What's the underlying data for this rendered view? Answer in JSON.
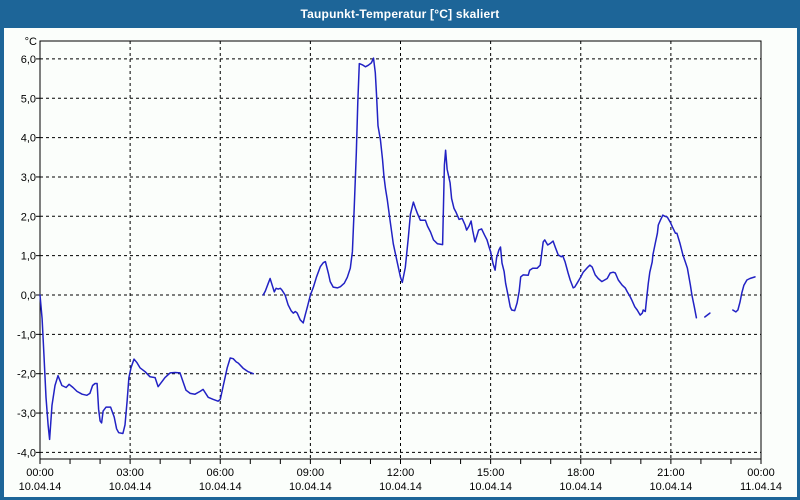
{
  "window": {
    "title": "Taupunkt-Temperatur [°C] skaliert"
  },
  "colors": {
    "titlebar": "#1d6598",
    "window_border": "#1d6598",
    "plot_background": "#fbfefb",
    "grid": "#000000",
    "axis": "#000000",
    "line": "#2222c4",
    "title_text": "#ffffff",
    "label_text": "#000000"
  },
  "chart_data": {
    "type": "line",
    "title": "Taupunkt-Temperatur [°C] skaliert",
    "xlabel": "",
    "ylabel": "°C",
    "y_unit_label": "°C",
    "ylim": [
      -4.17,
      6.45
    ],
    "xlim_hours": [
      0,
      24
    ],
    "grid": "dashed, horizontal every 1.0 °C and vertical every 3 h",
    "legend": "none",
    "y_ticks": [
      {
        "value": 6,
        "label": "6,0"
      },
      {
        "value": 5,
        "label": "5,0"
      },
      {
        "value": 4,
        "label": "4,0"
      },
      {
        "value": 3,
        "label": "3,0"
      },
      {
        "value": 2,
        "label": "2,0"
      },
      {
        "value": 1,
        "label": "1,0"
      },
      {
        "value": 0,
        "label": "0,0"
      },
      {
        "value": -1,
        "label": "-1,0"
      },
      {
        "value": -2,
        "label": "-2,0"
      },
      {
        "value": -3,
        "label": "-3,0"
      },
      {
        "value": -4,
        "label": "-4,0"
      }
    ],
    "x_ticks": [
      {
        "hour": 0,
        "time": "00:00",
        "date": "10.04.14"
      },
      {
        "hour": 3,
        "time": "03:00",
        "date": "10.04.14"
      },
      {
        "hour": 6,
        "time": "06:00",
        "date": "10.04.14"
      },
      {
        "hour": 9,
        "time": "09:00",
        "date": "10.04.14"
      },
      {
        "hour": 12,
        "time": "12:00",
        "date": "10.04.14"
      },
      {
        "hour": 15,
        "time": "15:00",
        "date": "10.04.14"
      },
      {
        "hour": 18,
        "time": "18:00",
        "date": "10.04.14"
      },
      {
        "hour": 21,
        "time": "21:00",
        "date": "10.04.14"
      },
      {
        "hour": 24,
        "time": "00:00",
        "date": "11.04.14"
      }
    ],
    "minor_x_tick_every_hours": 1,
    "series": [
      {
        "name": "Taupunkt-Temperatur",
        "color": "#2222c4",
        "segments": [
          [
            [
              0.0,
              0.0
            ],
            [
              0.07,
              -0.6
            ],
            [
              0.13,
              -1.5
            ],
            [
              0.2,
              -2.6
            ],
            [
              0.27,
              -3.3
            ],
            [
              0.32,
              -3.67
            ],
            [
              0.4,
              -2.8
            ],
            [
              0.5,
              -2.3
            ],
            [
              0.6,
              -2.05
            ],
            [
              0.73,
              -2.3
            ],
            [
              0.87,
              -2.35
            ],
            [
              0.97,
              -2.27
            ],
            [
              1.1,
              -2.35
            ],
            [
              1.23,
              -2.45
            ],
            [
              1.4,
              -2.52
            ],
            [
              1.56,
              -2.55
            ],
            [
              1.66,
              -2.5
            ],
            [
              1.75,
              -2.3
            ],
            [
              1.83,
              -2.25
            ],
            [
              1.9,
              -2.25
            ],
            [
              1.95,
              -2.9
            ],
            [
              2.0,
              -3.2
            ],
            [
              2.05,
              -3.25
            ],
            [
              2.1,
              -2.95
            ],
            [
              2.2,
              -2.85
            ],
            [
              2.35,
              -2.85
            ],
            [
              2.47,
              -3.1
            ],
            [
              2.55,
              -3.4
            ],
            [
              2.62,
              -3.5
            ],
            [
              2.76,
              -3.52
            ],
            [
              2.83,
              -3.3
            ],
            [
              2.9,
              -2.7
            ],
            [
              2.96,
              -2.1
            ],
            [
              3.03,
              -1.85
            ],
            [
              3.13,
              -1.63
            ],
            [
              3.23,
              -1.72
            ],
            [
              3.33,
              -1.85
            ],
            [
              3.5,
              -1.95
            ],
            [
              3.66,
              -2.08
            ],
            [
              3.83,
              -2.1
            ],
            [
              3.93,
              -2.33
            ],
            [
              4.06,
              -2.2
            ],
            [
              4.16,
              -2.1
            ],
            [
              4.33,
              -1.98
            ],
            [
              4.5,
              -1.97
            ],
            [
              4.66,
              -1.98
            ],
            [
              4.76,
              -2.2
            ],
            [
              4.86,
              -2.42
            ],
            [
              5.0,
              -2.5
            ],
            [
              5.16,
              -2.52
            ],
            [
              5.33,
              -2.45
            ],
            [
              5.43,
              -2.4
            ],
            [
              5.6,
              -2.6
            ],
            [
              5.76,
              -2.65
            ],
            [
              5.93,
              -2.7
            ],
            [
              6.0,
              -2.65
            ],
            [
              6.1,
              -2.3
            ],
            [
              6.23,
              -1.85
            ],
            [
              6.33,
              -1.6
            ],
            [
              6.43,
              -1.62
            ],
            [
              6.53,
              -1.7
            ],
            [
              6.6,
              -1.73
            ],
            [
              6.76,
              -1.86
            ],
            [
              6.93,
              -1.95
            ],
            [
              7.1,
              -2.0
            ]
          ],
          [
            [
              7.43,
              0.0
            ],
            [
              7.5,
              0.1
            ],
            [
              7.6,
              0.3
            ],
            [
              7.66,
              0.42
            ],
            [
              7.73,
              0.25
            ],
            [
              7.8,
              0.08
            ],
            [
              7.86,
              0.17
            ],
            [
              7.93,
              0.15
            ],
            [
              8.0,
              0.17
            ],
            [
              8.06,
              0.12
            ],
            [
              8.16,
              0.0
            ],
            [
              8.26,
              -0.25
            ],
            [
              8.36,
              -0.4
            ],
            [
              8.43,
              -0.46
            ],
            [
              8.5,
              -0.42
            ],
            [
              8.56,
              -0.46
            ],
            [
              8.66,
              -0.63
            ],
            [
              8.76,
              -0.71
            ],
            [
              8.83,
              -0.5
            ],
            [
              8.9,
              -0.3
            ],
            [
              9.0,
              0.0
            ],
            [
              9.1,
              0.2
            ],
            [
              9.2,
              0.45
            ],
            [
              9.33,
              0.72
            ],
            [
              9.43,
              0.82
            ],
            [
              9.5,
              0.85
            ],
            [
              9.6,
              0.55
            ],
            [
              9.66,
              0.34
            ],
            [
              9.76,
              0.2
            ],
            [
              9.9,
              0.18
            ],
            [
              10.0,
              0.21
            ],
            [
              10.13,
              0.3
            ],
            [
              10.23,
              0.45
            ],
            [
              10.33,
              0.68
            ],
            [
              10.4,
              1.1
            ],
            [
              10.46,
              2.2
            ],
            [
              10.53,
              3.6
            ],
            [
              10.58,
              4.9
            ],
            [
              10.63,
              5.88
            ],
            [
              10.73,
              5.85
            ],
            [
              10.83,
              5.8
            ],
            [
              10.93,
              5.84
            ],
            [
              11.03,
              5.9
            ],
            [
              11.1,
              6.02
            ],
            [
              11.16,
              5.65
            ],
            [
              11.2,
              5.1
            ],
            [
              11.25,
              4.3
            ],
            [
              11.33,
              3.95
            ],
            [
              11.4,
              3.45
            ],
            [
              11.45,
              3.0
            ],
            [
              11.5,
              2.7
            ],
            [
              11.56,
              2.42
            ],
            [
              11.66,
              1.85
            ],
            [
              11.76,
              1.3
            ],
            [
              11.9,
              0.8
            ],
            [
              12.0,
              0.45
            ],
            [
              12.06,
              0.32
            ],
            [
              12.16,
              0.7
            ],
            [
              12.26,
              1.45
            ],
            [
              12.33,
              2.05
            ],
            [
              12.43,
              2.36
            ],
            [
              12.5,
              2.2
            ],
            [
              12.56,
              2.08
            ],
            [
              12.66,
              1.9
            ],
            [
              12.83,
              1.9
            ],
            [
              12.9,
              1.75
            ],
            [
              13.0,
              1.6
            ],
            [
              13.1,
              1.4
            ],
            [
              13.23,
              1.3
            ],
            [
              13.4,
              1.28
            ],
            [
              13.46,
              3.3
            ],
            [
              13.5,
              3.68
            ],
            [
              13.55,
              3.2
            ],
            [
              13.65,
              2.85
            ],
            [
              13.7,
              2.45
            ],
            [
              13.78,
              2.2
            ],
            [
              13.85,
              2.1
            ],
            [
              13.95,
              1.92
            ],
            [
              14.05,
              1.95
            ],
            [
              14.15,
              1.78
            ],
            [
              14.2,
              1.65
            ],
            [
              14.28,
              1.75
            ],
            [
              14.35,
              1.88
            ],
            [
              14.4,
              1.65
            ],
            [
              14.48,
              1.35
            ],
            [
              14.55,
              1.52
            ],
            [
              14.6,
              1.65
            ],
            [
              14.7,
              1.68
            ],
            [
              14.8,
              1.52
            ],
            [
              14.88,
              1.4
            ],
            [
              14.95,
              1.22
            ],
            [
              15.0,
              1.1
            ],
            [
              15.08,
              0.8
            ],
            [
              15.15,
              0.63
            ],
            [
              15.2,
              0.95
            ],
            [
              15.28,
              1.15
            ],
            [
              15.33,
              1.22
            ],
            [
              15.38,
              0.81
            ],
            [
              15.45,
              0.6
            ],
            [
              15.5,
              0.3
            ],
            [
              15.58,
              0.0
            ],
            [
              15.65,
              -0.3
            ],
            [
              15.7,
              -0.38
            ],
            [
              15.8,
              -0.4
            ],
            [
              15.88,
              -0.2
            ],
            [
              15.95,
              0.1
            ],
            [
              16.0,
              0.46
            ],
            [
              16.08,
              0.51
            ],
            [
              16.25,
              0.5
            ],
            [
              16.3,
              0.63
            ],
            [
              16.4,
              0.68
            ],
            [
              16.55,
              0.68
            ],
            [
              16.65,
              0.76
            ],
            [
              16.75,
              1.35
            ],
            [
              16.8,
              1.4
            ],
            [
              16.9,
              1.27
            ],
            [
              17.0,
              1.32
            ],
            [
              17.08,
              1.37
            ],
            [
              17.15,
              1.22
            ],
            [
              17.25,
              1.02
            ],
            [
              17.35,
              0.97
            ],
            [
              17.4,
              1.0
            ],
            [
              17.48,
              0.84
            ],
            [
              17.58,
              0.56
            ],
            [
              17.65,
              0.38
            ],
            [
              17.75,
              0.18
            ],
            [
              17.8,
              0.2
            ],
            [
              17.88,
              0.3
            ],
            [
              18.0,
              0.46
            ],
            [
              18.08,
              0.58
            ],
            [
              18.2,
              0.68
            ],
            [
              18.3,
              0.76
            ],
            [
              18.38,
              0.71
            ],
            [
              18.48,
              0.51
            ],
            [
              18.58,
              0.42
            ],
            [
              18.7,
              0.34
            ],
            [
              18.88,
              0.42
            ],
            [
              18.98,
              0.56
            ],
            [
              19.08,
              0.58
            ],
            [
              19.15,
              0.56
            ],
            [
              19.25,
              0.38
            ],
            [
              19.38,
              0.25
            ],
            [
              19.48,
              0.18
            ],
            [
              19.55,
              0.08
            ],
            [
              19.65,
              -0.05
            ],
            [
              19.7,
              -0.13
            ],
            [
              19.8,
              -0.3
            ],
            [
              19.88,
              -0.38
            ],
            [
              19.98,
              -0.51
            ],
            [
              20.05,
              -0.46
            ],
            [
              20.08,
              -0.38
            ],
            [
              20.15,
              -0.42
            ],
            [
              20.2,
              -0.05
            ],
            [
              20.25,
              0.3
            ],
            [
              20.3,
              0.58
            ],
            [
              20.38,
              0.84
            ],
            [
              20.4,
              1.02
            ],
            [
              20.48,
              1.32
            ],
            [
              20.55,
              1.57
            ],
            [
              20.58,
              1.78
            ],
            [
              20.65,
              1.9
            ],
            [
              20.7,
              1.98
            ],
            [
              20.73,
              2.03
            ],
            [
              20.8,
              2.0
            ],
            [
              20.88,
              1.98
            ],
            [
              20.98,
              1.85
            ],
            [
              21.05,
              1.73
            ],
            [
              21.15,
              1.57
            ],
            [
              21.2,
              1.57
            ],
            [
              21.3,
              1.32
            ],
            [
              21.4,
              1.02
            ],
            [
              21.48,
              0.84
            ],
            [
              21.55,
              0.68
            ],
            [
              21.65,
              0.25
            ],
            [
              21.7,
              0.0
            ],
            [
              21.78,
              -0.3
            ],
            [
              21.85,
              -0.58
            ]
          ],
          [
            [
              22.13,
              -0.56
            ],
            [
              22.3,
              -0.46
            ]
          ],
          [
            [
              23.06,
              -0.38
            ],
            [
              23.16,
              -0.43
            ],
            [
              23.23,
              -0.38
            ],
            [
              23.3,
              -0.18
            ],
            [
              23.36,
              0.05
            ],
            [
              23.43,
              0.25
            ],
            [
              23.53,
              0.38
            ],
            [
              23.63,
              0.42
            ],
            [
              23.8,
              0.46
            ]
          ]
        ]
      }
    ]
  }
}
